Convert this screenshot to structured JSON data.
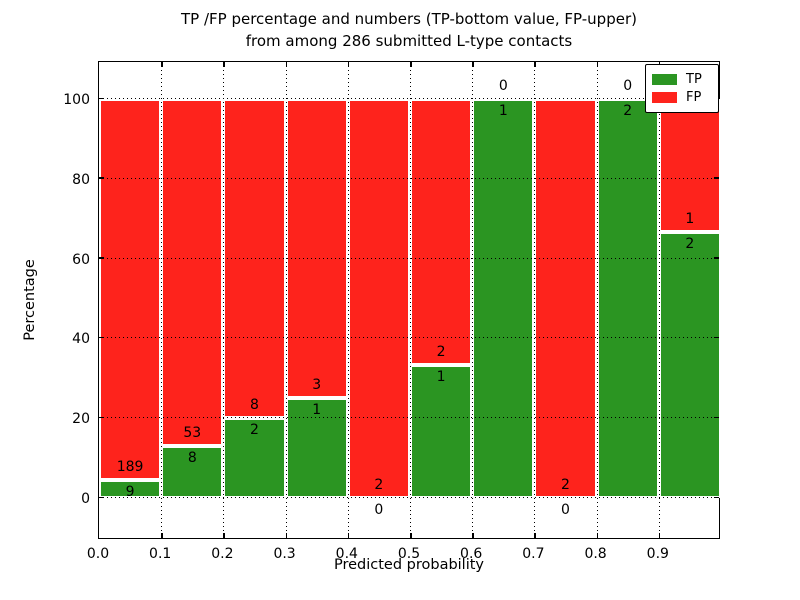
{
  "figure": {
    "title_line1": "TP /FP percentage and numbers (TP-bottom value, FP-upper)",
    "title_line2": "from among 286 submitted L-type contacts",
    "xlabel": "Predicted probability",
    "ylabel": "Percentage"
  },
  "legend": {
    "items": [
      {
        "label": "TP",
        "color": "#2b9522"
      },
      {
        "label": "FP",
        "color": "#fe231c"
      }
    ]
  },
  "chart_data": {
    "type": "bar",
    "stacked": true,
    "normalized": "each bin scaled to percent of bin total (TP+FP)",
    "title": "TP /FP percentage and numbers (TP-bottom value, FP-upper) from among 286 submitted L-type contacts",
    "xlabel": "Predicted probability",
    "ylabel": "Percentage",
    "total_contacts": 286,
    "bin_starts": [
      0.0,
      0.1,
      0.2,
      0.3,
      0.4,
      0.5,
      0.6,
      0.7,
      0.8,
      0.9
    ],
    "bin_width": 0.1,
    "x_tick_labels": [
      "0.0",
      "0.1",
      "0.2",
      "0.3",
      "0.4",
      "0.5",
      "0.6",
      "0.7",
      "0.8",
      "0.9"
    ],
    "y_ticks": [
      0,
      20,
      40,
      60,
      80,
      100
    ],
    "ylim": [
      -10,
      110
    ],
    "series": [
      {
        "name": "TP",
        "color": "#2b9522",
        "counts": [
          9,
          8,
          2,
          1,
          0,
          1,
          1,
          0,
          2,
          2
        ]
      },
      {
        "name": "FP",
        "color": "#fe231c",
        "counts": [
          189,
          53,
          8,
          3,
          2,
          2,
          0,
          2,
          0,
          1
        ]
      }
    ],
    "tp_percent_per_bin": [
      4.55,
      13.11,
      20.0,
      25.0,
      0.0,
      33.33,
      100.0,
      0.0,
      100.0,
      66.67
    ],
    "grid": "dotted",
    "legend_position": "upper right"
  }
}
